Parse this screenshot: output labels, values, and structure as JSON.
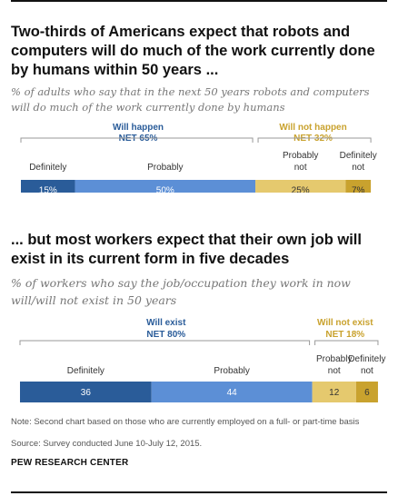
{
  "charts": {
    "top": {
      "title": "Two-thirds of Americans expect that robots and computers will do much of the work currently done by humans within 50 years ...",
      "subtitle": "% of adults who say that in the next 50 years robots and computers will do much of the work currently done by humans"
    },
    "bottom": {
      "title": "... but most workers expect that their own job will exist in its current form in five decades",
      "subtitle": "% of workers who say the job/occupation they work in now will/will not exist in 50 years"
    }
  },
  "note": "Note: Second chart based on those who are currently employed on a full- or part-time basis",
  "source": "Source: Survey conducted June 10-July 12, 2015.",
  "footer": "PEW RESEARCH CENTER",
  "colors": {
    "dark_blue": "#2a5c99",
    "light_blue": "#5c8fd6",
    "light_gold": "#e5c96e",
    "dark_gold": "#c9a22e",
    "blue_label": "#2a5c99",
    "gold_label": "#c9a22e"
  },
  "chart_data": [
    {
      "type": "bar",
      "orientation": "horizontal-stacked",
      "categories": [
        "Definitely",
        "Probably",
        "Probably not",
        "Definitely not"
      ],
      "values": [
        15,
        50,
        25,
        7
      ],
      "value_labels": [
        "15%",
        "50%",
        "25%",
        "7%"
      ],
      "groups": [
        {
          "label_line1": "Will happen",
          "label_line2": "NET 65%",
          "members": [
            0,
            1
          ],
          "color": "blue"
        },
        {
          "label_line1": "Will not happen",
          "label_line2": "NET 32%",
          "members": [
            2,
            3
          ],
          "color": "gold"
        }
      ],
      "xlim": [
        0,
        100
      ]
    },
    {
      "type": "bar",
      "orientation": "horizontal-stacked",
      "categories": [
        "Definitely",
        "Probably",
        "Probably not",
        "Definitely not"
      ],
      "values": [
        36,
        44,
        12,
        6
      ],
      "value_labels": [
        "36",
        "44",
        "12",
        "6"
      ],
      "groups": [
        {
          "label_line1": "Will exist",
          "label_line2": "NET 80%",
          "members": [
            0,
            1
          ],
          "color": "blue"
        },
        {
          "label_line1": "Will not exist",
          "label_line2": "NET 18%",
          "members": [
            2,
            3
          ],
          "color": "gold"
        }
      ],
      "xlim": [
        0,
        100
      ]
    }
  ]
}
